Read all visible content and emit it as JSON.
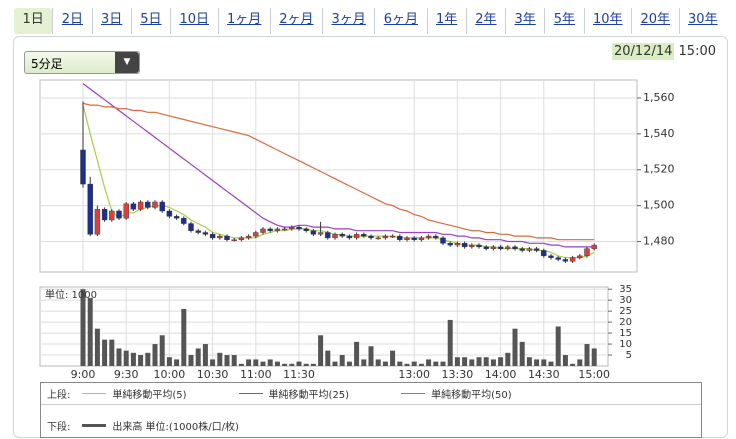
{
  "tabs": [
    "1日",
    "2日",
    "3日",
    "5日",
    "10日",
    "1ヶ月",
    "2ヶ月",
    "3ヶ月",
    "6ヶ月",
    "1年",
    "2年",
    "3年",
    "5年",
    "10年",
    "20年",
    "30年"
  ],
  "selected_tab": 0,
  "dropdown": "5分足",
  "date": "20/12/14",
  "time": "15:00",
  "legend": {
    "upper": "上段:",
    "lower": "下段:"
  },
  "chart_data": [
    {
      "type": "candlestick",
      "up_color": "#d9413e",
      "down_color": "#1c2f8a",
      "grid": true,
      "ylim": [
        1463,
        1570
      ],
      "yticks": [
        {
          "value": 1480,
          "label": "1,480"
        },
        {
          "value": 1500,
          "label": "1,500"
        },
        {
          "value": 1520,
          "label": "1,520"
        },
        {
          "value": 1540,
          "label": "1,540"
        },
        {
          "value": 1560,
          "label": "1,560"
        }
      ],
      "open": [
        1531,
        1512,
        1484,
        1498,
        1492,
        1497,
        1493,
        1501,
        1498,
        1502,
        1499,
        1502,
        1497,
        1494,
        1493,
        1490,
        1486,
        1485,
        1484,
        1482,
        1483,
        1481,
        1481,
        1482,
        1483,
        1485,
        1487,
        1486,
        1487,
        1487,
        1488,
        1487,
        1486,
        1484,
        1485,
        1482,
        1484,
        1483,
        1482,
        1484,
        1483,
        1482,
        1482,
        1483,
        1483,
        1481,
        1482,
        1481,
        1482,
        1483,
        1482,
        1479,
        1478,
        1479,
        1477,
        1478,
        1477,
        1476,
        1477,
        1476,
        1477,
        1476,
        1475,
        1476,
        1475,
        1472,
        1471,
        1470,
        1469,
        1471,
        1472,
        1476
      ],
      "high": [
        1558,
        1516,
        1500,
        1499,
        1498,
        1498,
        1502,
        1502,
        1503,
        1503,
        1503,
        1503,
        1498,
        1495,
        1494,
        1491,
        1487,
        1486,
        1485,
        1484,
        1484,
        1482,
        1483,
        1484,
        1486,
        1488,
        1488,
        1488,
        1488,
        1489,
        1489,
        1488,
        1487,
        1491,
        1486,
        1485,
        1485,
        1484,
        1485,
        1485,
        1484,
        1483,
        1484,
        1484,
        1484,
        1483,
        1483,
        1483,
        1484,
        1484,
        1483,
        1480,
        1480,
        1480,
        1479,
        1479,
        1478,
        1478,
        1478,
        1478,
        1478,
        1477,
        1477,
        1477,
        1476,
        1473,
        1472,
        1471,
        1472,
        1473,
        1477,
        1479
      ],
      "low": [
        1510,
        1483,
        1483,
        1491,
        1491,
        1492,
        1492,
        1497,
        1497,
        1498,
        1498,
        1496,
        1493,
        1492,
        1489,
        1485,
        1484,
        1483,
        1481,
        1481,
        1480,
        1480,
        1480,
        1481,
        1482,
        1484,
        1485,
        1485,
        1486,
        1486,
        1486,
        1485,
        1483,
        1483,
        1481,
        1481,
        1482,
        1481,
        1481,
        1482,
        1481,
        1481,
        1481,
        1482,
        1480,
        1480,
        1480,
        1480,
        1481,
        1481,
        1478,
        1477,
        1477,
        1476,
        1476,
        1476,
        1475,
        1475,
        1475,
        1475,
        1475,
        1474,
        1474,
        1474,
        1471,
        1470,
        1469,
        1468,
        1468,
        1470,
        1471,
        1475
      ],
      "close": [
        1512,
        1484,
        1498,
        1492,
        1497,
        1493,
        1501,
        1498,
        1502,
        1499,
        1502,
        1497,
        1494,
        1493,
        1490,
        1486,
        1485,
        1484,
        1482,
        1483,
        1481,
        1481,
        1482,
        1483,
        1485,
        1487,
        1486,
        1487,
        1487,
        1488,
        1487,
        1486,
        1484,
        1485,
        1482,
        1484,
        1483,
        1482,
        1484,
        1483,
        1482,
        1482,
        1483,
        1483,
        1481,
        1482,
        1481,
        1482,
        1483,
        1482,
        1479,
        1478,
        1479,
        1477,
        1478,
        1477,
        1476,
        1477,
        1476,
        1477,
        1476,
        1475,
        1476,
        1475,
        1472,
        1471,
        1470,
        1469,
        1471,
        1472,
        1476,
        1478
      ],
      "series": [
        {
          "name": "単純移動平均(5)",
          "color": "#a8cf45",
          "values": [
            1556,
            1540,
            1525,
            1510,
            1497,
            1493,
            1496,
            1496,
            1498,
            1499,
            1500,
            1500,
            1499,
            1497,
            1495,
            1492,
            1490,
            1488,
            1485,
            1484,
            1483,
            1482,
            1482,
            1482,
            1482,
            1484,
            1485,
            1486,
            1486,
            1487,
            1487,
            1487,
            1486,
            1486,
            1485,
            1484,
            1484,
            1483,
            1483,
            1483,
            1483,
            1483,
            1483,
            1483,
            1482,
            1482,
            1482,
            1482,
            1482,
            1482,
            1481,
            1480,
            1479,
            1478,
            1478,
            1478,
            1477,
            1477,
            1476,
            1476,
            1476,
            1476,
            1476,
            1475,
            1475,
            1474,
            1472,
            1471,
            1471,
            1471,
            1472,
            1474
          ]
        },
        {
          "name": "単純移動平均(25)",
          "color": "#9b3fc4",
          "values": [
            1568,
            1565,
            1562,
            1559,
            1556,
            1553,
            1550,
            1547,
            1544,
            1541,
            1538,
            1535,
            1532,
            1529,
            1526,
            1523,
            1520,
            1517,
            1514,
            1511,
            1508,
            1505,
            1502,
            1499,
            1496,
            1493,
            1491,
            1489,
            1488,
            1488,
            1489,
            1489,
            1488,
            1488,
            1488,
            1487,
            1487,
            1487,
            1486,
            1486,
            1486,
            1486,
            1486,
            1486,
            1485,
            1485,
            1485,
            1485,
            1485,
            1485,
            1484,
            1484,
            1483,
            1483,
            1482,
            1482,
            1481,
            1481,
            1481,
            1480,
            1480,
            1480,
            1479,
            1479,
            1479,
            1478,
            1478,
            1477,
            1477,
            1477,
            1477,
            1477
          ]
        },
        {
          "name": "単純移動平均(50)",
          "color": "#d8693a",
          "values": [
            1557,
            1556,
            1556,
            1555,
            1555,
            1554,
            1554,
            1553,
            1553,
            1552,
            1552,
            1551,
            1550,
            1549,
            1548,
            1547,
            1546,
            1545,
            1544,
            1543,
            1542,
            1541,
            1540,
            1539,
            1537,
            1535,
            1533,
            1531,
            1529,
            1527,
            1525,
            1523,
            1521,
            1519,
            1517,
            1515,
            1513,
            1511,
            1509,
            1507,
            1505,
            1503,
            1501,
            1500,
            1498,
            1497,
            1495,
            1494,
            1492,
            1491,
            1490,
            1489,
            1488,
            1487,
            1486,
            1486,
            1485,
            1485,
            1484,
            1484,
            1483,
            1483,
            1483,
            1482,
            1482,
            1482,
            1481,
            1481,
            1481,
            1481,
            1481,
            1481
          ]
        }
      ]
    },
    {
      "type": "bar",
      "unit_label": "単位: 1000",
      "grid": true,
      "ylim": [
        0,
        36
      ],
      "yticks": [
        5,
        10,
        15,
        20,
        25,
        30,
        35
      ],
      "categories": [
        "9:00",
        null,
        null,
        null,
        null,
        null,
        "9:30",
        null,
        null,
        null,
        null,
        null,
        "10:00",
        null,
        null,
        null,
        null,
        null,
        "10:30",
        null,
        null,
        null,
        null,
        null,
        "11:00",
        null,
        null,
        null,
        null,
        null,
        "11:30",
        null,
        null,
        null,
        null,
        null,
        null,
        null,
        null,
        null,
        null,
        null,
        null,
        null,
        null,
        null,
        "13:00",
        null,
        null,
        null,
        null,
        null,
        "13:30",
        null,
        null,
        null,
        null,
        null,
        "14:00",
        null,
        null,
        null,
        null,
        null,
        "14:30",
        null,
        null,
        null,
        null,
        null,
        null,
        "15:00"
      ],
      "series": [
        {
          "name": "出来高 単位:(1000株/口/枚)",
          "color": "#555555",
          "values": [
            35,
            31,
            17,
            12,
            12,
            8,
            7,
            6,
            5,
            6,
            10,
            14,
            4,
            3,
            26,
            5,
            8,
            10,
            3,
            6,
            5,
            5,
            1,
            3,
            3,
            2,
            3,
            2,
            1,
            1,
            2,
            1,
            1,
            14,
            7,
            2,
            5,
            2,
            11,
            3,
            9,
            3,
            2,
            7,
            2,
            1,
            2,
            1,
            3,
            2,
            2,
            21,
            4,
            4,
            3,
            4,
            4,
            3,
            4,
            6,
            17,
            11,
            4,
            3,
            3,
            2,
            18,
            5,
            1,
            3,
            10,
            8
          ]
        }
      ]
    }
  ]
}
